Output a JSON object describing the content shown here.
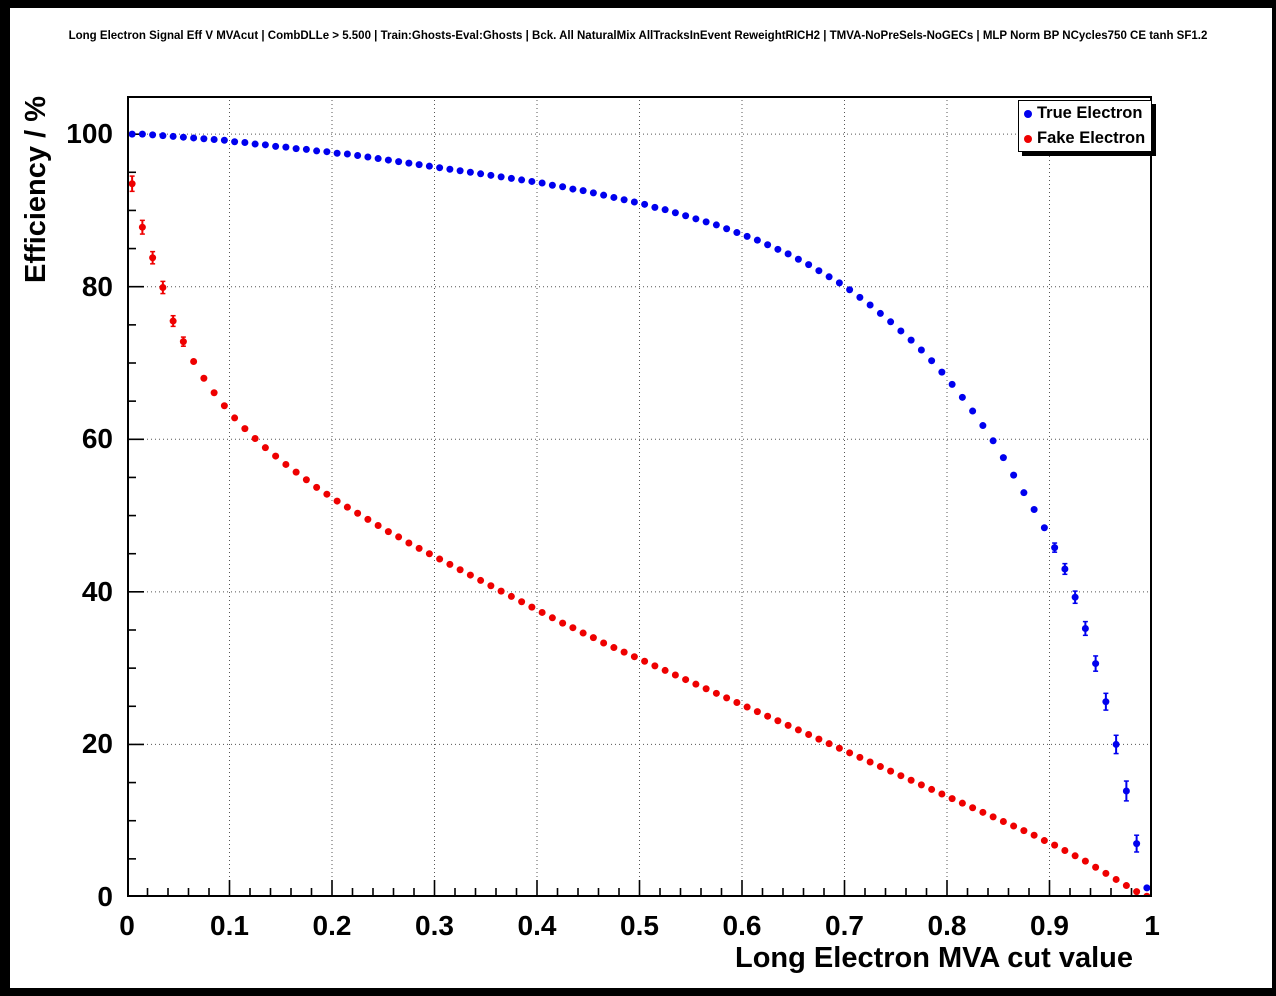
{
  "chart_data": {
    "type": "scatter",
    "title": "Long Electron Signal Eff V MVAcut | CombDLLe > 5.500 | Train:Ghosts-Eval:Ghosts | Bck. All NaturalMix AllTracksInEvent ReweightRICH2 | TMVA-NoPreSels-NoGECs | MLP Norm BP NCycles750 CE tanh SF1.2",
    "xlabel": "Long Electron MVA cut value",
    "ylabel": "Efficiency / %",
    "xlim": [
      0,
      1
    ],
    "ylim": [
      0,
      105
    ],
    "grid": "dotted",
    "x_major_ticks": [
      0,
      0.1,
      0.2,
      0.3,
      0.4,
      0.5,
      0.6,
      0.7,
      0.8,
      0.9,
      1
    ],
    "x_tick_labels": [
      "0",
      "0.1",
      "0.2",
      "0.3",
      "0.4",
      "0.5",
      "0.6",
      "0.7",
      "0.8",
      "0.9",
      "1"
    ],
    "x_minor_step": 0.02,
    "y_major_ticks": [
      0,
      20,
      40,
      60,
      80,
      100
    ],
    "y_tick_labels": [
      "0",
      "20",
      "40",
      "60",
      "80",
      "100"
    ],
    "y_minor_step": 5,
    "legend": {
      "position": "top-right"
    },
    "x": [
      0.005,
      0.015,
      0.025,
      0.035,
      0.045,
      0.055,
      0.065,
      0.075,
      0.085,
      0.095,
      0.105,
      0.115,
      0.125,
      0.135,
      0.145,
      0.155,
      0.165,
      0.175,
      0.185,
      0.195,
      0.205,
      0.215,
      0.225,
      0.235,
      0.245,
      0.255,
      0.265,
      0.275,
      0.285,
      0.295,
      0.305,
      0.315,
      0.325,
      0.335,
      0.345,
      0.355,
      0.365,
      0.375,
      0.385,
      0.395,
      0.405,
      0.415,
      0.425,
      0.435,
      0.445,
      0.455,
      0.465,
      0.475,
      0.485,
      0.495,
      0.505,
      0.515,
      0.525,
      0.535,
      0.545,
      0.555,
      0.565,
      0.575,
      0.585,
      0.595,
      0.605,
      0.615,
      0.625,
      0.635,
      0.645,
      0.655,
      0.665,
      0.675,
      0.685,
      0.695,
      0.705,
      0.715,
      0.725,
      0.735,
      0.745,
      0.755,
      0.765,
      0.775,
      0.785,
      0.795,
      0.805,
      0.815,
      0.825,
      0.835,
      0.845,
      0.855,
      0.865,
      0.875,
      0.885,
      0.895,
      0.905,
      0.915,
      0.925,
      0.935,
      0.945,
      0.955,
      0.965,
      0.975,
      0.985,
      0.995
    ],
    "series": [
      {
        "name": "True Electron",
        "color": "#0000ee",
        "marker": "full-circle",
        "yerr_default": 0.3,
        "yerr_overrides": {
          "90": 0.6,
          "91": 0.7,
          "92": 0.8,
          "93": 0.9,
          "94": 1.0,
          "95": 1.1,
          "96": 1.2,
          "97": 1.3,
          "98": 1.1,
          "99": 0.4
        },
        "values": [
          100.0,
          100.0,
          99.9,
          99.8,
          99.7,
          99.6,
          99.5,
          99.4,
          99.3,
          99.2,
          99.0,
          98.9,
          98.7,
          98.6,
          98.4,
          98.3,
          98.1,
          98.0,
          97.8,
          97.7,
          97.5,
          97.4,
          97.2,
          97.0,
          96.8,
          96.6,
          96.4,
          96.2,
          96.0,
          95.8,
          95.6,
          95.4,
          95.2,
          95.0,
          94.8,
          94.6,
          94.4,
          94.2,
          94.0,
          93.8,
          93.6,
          93.3,
          93.1,
          92.8,
          92.6,
          92.3,
          92.0,
          91.7,
          91.4,
          91.1,
          90.8,
          90.4,
          90.1,
          89.7,
          89.3,
          88.9,
          88.5,
          88.1,
          87.6,
          87.1,
          86.6,
          86.1,
          85.5,
          84.9,
          84.3,
          83.6,
          82.9,
          82.1,
          81.3,
          80.5,
          79.6,
          78.6,
          77.6,
          76.5,
          75.4,
          74.2,
          73.0,
          71.7,
          70.3,
          68.8,
          67.2,
          65.5,
          63.7,
          61.8,
          59.8,
          57.6,
          55.3,
          53.0,
          50.8,
          48.4,
          45.8,
          43.0,
          39.3,
          35.2,
          30.6,
          25.6,
          20.0,
          13.9,
          7.0,
          1.2
        ]
      },
      {
        "name": "Fake Electron",
        "color": "#ee0000",
        "marker": "full-circle",
        "yerr_default": 0.25,
        "yerr_overrides": {
          "0": 1.0,
          "1": 0.9,
          "2": 0.8,
          "3": 0.8,
          "4": 0.7,
          "5": 0.6
        },
        "values": [
          93.5,
          87.8,
          83.8,
          79.9,
          75.5,
          72.8,
          70.2,
          68.0,
          66.1,
          64.4,
          62.8,
          61.4,
          60.1,
          58.9,
          57.8,
          56.7,
          55.7,
          54.7,
          53.7,
          52.8,
          51.9,
          51.1,
          50.3,
          49.5,
          48.7,
          47.9,
          47.2,
          46.4,
          45.7,
          45.0,
          44.3,
          43.6,
          42.9,
          42.2,
          41.5,
          40.8,
          40.1,
          39.4,
          38.7,
          38.0,
          37.3,
          36.6,
          35.9,
          35.3,
          34.6,
          34.0,
          33.3,
          32.7,
          32.1,
          31.5,
          30.9,
          30.3,
          29.7,
          29.1,
          28.5,
          27.9,
          27.3,
          26.7,
          26.1,
          25.5,
          24.9,
          24.3,
          23.7,
          23.1,
          22.5,
          21.9,
          21.3,
          20.7,
          20.1,
          19.5,
          18.9,
          18.3,
          17.7,
          17.1,
          16.5,
          15.9,
          15.3,
          14.7,
          14.1,
          13.5,
          12.9,
          12.3,
          11.7,
          11.1,
          10.5,
          9.9,
          9.3,
          8.7,
          8.1,
          7.4,
          6.8,
          6.1,
          5.4,
          4.7,
          3.9,
          3.1,
          2.3,
          1.5,
          0.7,
          0.1
        ]
      }
    ]
  }
}
